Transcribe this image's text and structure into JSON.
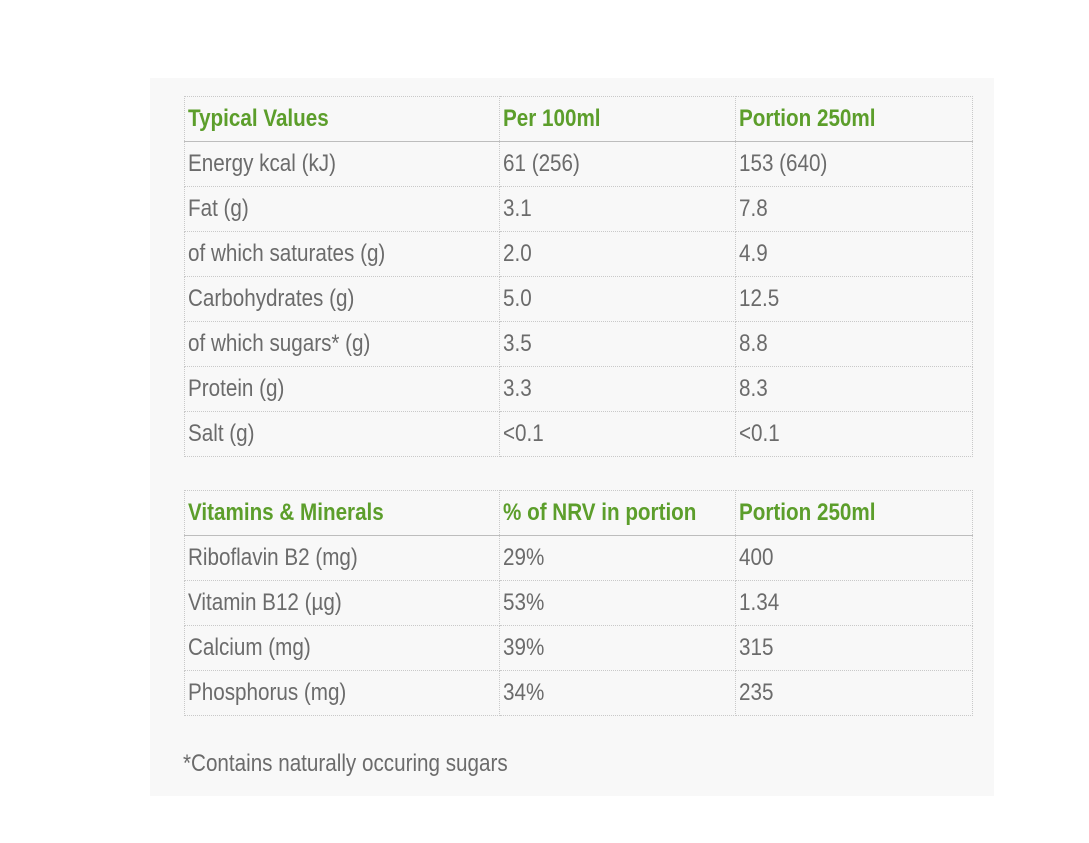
{
  "table1": {
    "headers": [
      "Typical Values",
      "Per 100ml",
      "Portion 250ml"
    ],
    "rows": [
      [
        "Energy kcal (kJ)",
        "61 (256)",
        "153 (640)"
      ],
      [
        "Fat (g)",
        "3.1",
        "7.8"
      ],
      [
        "of which saturates (g)",
        "2.0",
        "4.9"
      ],
      [
        "Carbohydrates (g)",
        "5.0",
        "12.5"
      ],
      [
        "of which sugars* (g)",
        "3.5",
        "8.8"
      ],
      [
        "Protein (g)",
        "3.3",
        "8.3"
      ],
      [
        "Salt (g)",
        "<0.1",
        "<0.1"
      ]
    ]
  },
  "table2": {
    "headers": [
      "Vitamins & Minerals",
      "% of NRV in portion",
      "Portion 250ml"
    ],
    "rows": [
      [
        "Riboflavin B2 (mg)",
        "29%",
        "400"
      ],
      [
        "Vitamin B12 (µg)",
        "53%",
        "1.34"
      ],
      [
        "Calcium (mg)",
        "39%",
        "315"
      ],
      [
        "Phosphorus (mg)",
        "34%",
        "235"
      ]
    ]
  },
  "footnote": "*Contains naturally occuring sugars",
  "colors": {
    "header_text": "#5c9e2b",
    "body_text": "#6b6b6b",
    "panel_background": "#f8f8f8"
  }
}
